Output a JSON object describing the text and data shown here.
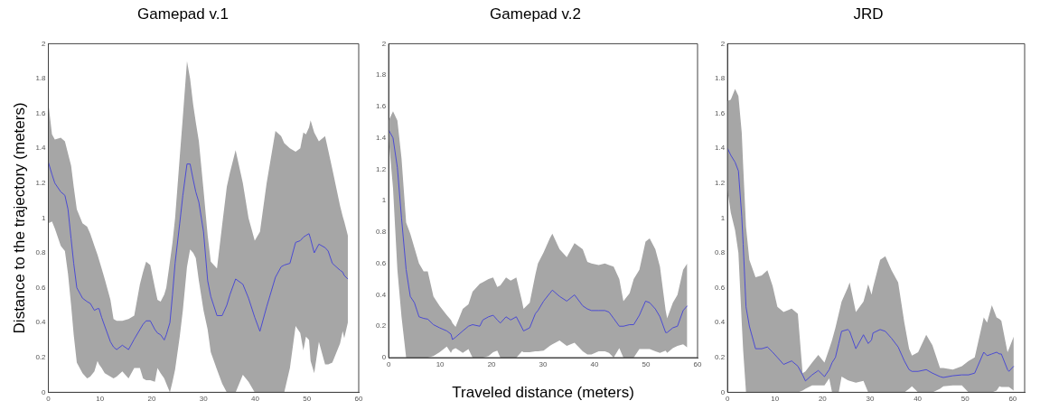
{
  "chart_data": [
    {
      "type": "line",
      "title": "Gamepad v.1",
      "ylabel": "Distance to the trajectory (meters)",
      "xlim": [
        0,
        60
      ],
      "xticks": [
        0,
        10,
        20,
        30,
        40,
        50,
        60
      ],
      "ylim": [
        0,
        2
      ],
      "yticks": [
        0,
        0.2,
        0.4,
        0.6,
        0.8,
        1,
        1.2,
        1.4,
        1.6,
        1.8,
        2
      ],
      "series": [
        {
          "color": "#4b4bd2",
          "x": [
            0,
            0.7,
            1.25,
            2.4,
            3.2,
            3.8,
            4.4,
            4.9,
            5.5,
            6.6,
            7.5,
            8.1,
            8.9,
            9.5,
            9.8,
            10.3,
            10.9,
            12,
            12.6,
            13.2,
            14.3,
            15.5,
            16.6,
            17.7,
            18.3,
            18.9,
            19.7,
            20.6,
            21.1,
            21.7,
            22.4,
            22.8,
            23.5,
            24,
            24.5,
            25.4,
            26,
            26.8,
            27.4,
            28,
            28.5,
            29.1,
            30,
            30.8,
            31.4,
            32.6,
            33.6,
            34.5,
            35.1,
            36.2,
            37.6,
            38.7,
            39.9,
            40.9,
            42.2,
            43.9,
            45,
            45.6,
            46.7,
            47.8,
            48.7,
            49.3,
            49.8,
            50.4,
            50.7,
            51.4,
            52.3,
            53.5,
            54.1,
            54.9,
            56.4,
            56.9,
            57.2,
            57.9
          ],
          "values": [
            1.32,
            1.25,
            1.2,
            1.15,
            1.13,
            1.05,
            0.88,
            0.74,
            0.6,
            0.54,
            0.52,
            0.51,
            0.47,
            0.48,
            0.48,
            0.43,
            0.38,
            0.29,
            0.26,
            0.245,
            0.27,
            0.245,
            0.305,
            0.36,
            0.39,
            0.41,
            0.41,
            0.36,
            0.34,
            0.33,
            0.3,
            0.33,
            0.4,
            0.56,
            0.74,
            0.97,
            1.13,
            1.31,
            1.31,
            1.22,
            1.15,
            1.09,
            0.92,
            0.64,
            0.55,
            0.44,
            0.44,
            0.5,
            0.56,
            0.65,
            0.62,
            0.54,
            0.43,
            0.35,
            0.49,
            0.66,
            0.72,
            0.73,
            0.74,
            0.86,
            0.87,
            0.89,
            0.9,
            0.91,
            0.88,
            0.8,
            0.85,
            0.83,
            0.81,
            0.74,
            0.7,
            0.69,
            0.67,
            0.65
          ],
          "upper": [
            1.66,
            1.48,
            1.45,
            1.46,
            1.44,
            1.37,
            1.3,
            1.18,
            1.05,
            0.97,
            0.95,
            0.91,
            0.84,
            0.79,
            0.76,
            0.71,
            0.65,
            0.53,
            0.42,
            0.41,
            0.41,
            0.42,
            0.44,
            0.62,
            0.69,
            0.75,
            0.73,
            0.6,
            0.53,
            0.52,
            0.56,
            0.6,
            0.75,
            0.86,
            1.0,
            1.35,
            1.58,
            1.9,
            1.8,
            1.65,
            1.55,
            1.44,
            1.16,
            0.9,
            0.75,
            0.71,
            0.96,
            1.18,
            1.26,
            1.39,
            1.2,
            1.0,
            0.87,
            0.92,
            1.2,
            1.5,
            1.47,
            1.43,
            1.4,
            1.38,
            1.4,
            1.49,
            1.48,
            1.52,
            1.56,
            1.49,
            1.44,
            1.47,
            1.39,
            1.28,
            1.07,
            1.01,
            0.98,
            0.9
          ],
          "lower": [
            0.97,
            0.98,
            0.94,
            0.84,
            0.81,
            0.68,
            0.5,
            0.33,
            0.17,
            0.11,
            0.08,
            0.09,
            0.12,
            0.18,
            0.16,
            0.14,
            0.11,
            0.09,
            0.08,
            0.09,
            0.12,
            0.08,
            0.14,
            0.14,
            0.08,
            0.07,
            0.07,
            0.06,
            0.14,
            0.11,
            0.08,
            0.05,
            0,
            0.06,
            0.13,
            0.32,
            0.47,
            0.72,
            0.82,
            0.8,
            0.77,
            0.64,
            0.47,
            0.36,
            0.23,
            0.13,
            0.05,
            0,
            0,
            0,
            0.1,
            0.06,
            0,
            0,
            0,
            0,
            0,
            0,
            0.14,
            0.38,
            0.34,
            0.24,
            0.32,
            0.3,
            0.18,
            0.11,
            0.29,
            0.16,
            0.16,
            0.17,
            0.28,
            0.35,
            0.31,
            0.4
          ]
        }
      ]
    },
    {
      "type": "line",
      "title": "Gamepad v.2",
      "xlabel": "Traveled distance (meters)",
      "xlim": [
        0,
        60
      ],
      "xticks": [
        0,
        10,
        20,
        30,
        40,
        50,
        60
      ],
      "ylim": [
        0,
        2
      ],
      "yticks": [
        0,
        0.2,
        0.4,
        0.6,
        0.8,
        1,
        1.2,
        1.4,
        1.6,
        1.8,
        2
      ],
      "series": [
        {
          "color": "#4b4bd2",
          "x": [
            0,
            0.85,
            1.7,
            2.5,
            3.4,
            4.2,
            5,
            5.9,
            6.8,
            7.6,
            8.7,
            9.9,
            11.3,
            12.1,
            12.4,
            13,
            14.4,
            15.5,
            16.3,
            17.7,
            18.3,
            19.4,
            20.3,
            21.1,
            21.7,
            22.8,
            23.7,
            24.8,
            25.9,
            26.2,
            27.4,
            28.5,
            29,
            30.1,
            31.3,
            31.8,
            33.2,
            34.6,
            36.1,
            37.7,
            38.6,
            39.4,
            40.8,
            42,
            42.8,
            43.7,
            44.8,
            45.6,
            46.8,
            47.6,
            48.7,
            49.9,
            50.7,
            51.8,
            52.7,
            53.8,
            54.1,
            55.2,
            56.1,
            57.2,
            58
          ],
          "values": [
            1.45,
            1.4,
            1.21,
            0.89,
            0.56,
            0.39,
            0.35,
            0.26,
            0.25,
            0.245,
            0.21,
            0.19,
            0.17,
            0.15,
            0.115,
            0.13,
            0.17,
            0.2,
            0.21,
            0.2,
            0.24,
            0.26,
            0.27,
            0.24,
            0.22,
            0.26,
            0.24,
            0.26,
            0.19,
            0.17,
            0.19,
            0.28,
            0.3,
            0.36,
            0.41,
            0.43,
            0.39,
            0.36,
            0.4,
            0.33,
            0.31,
            0.3,
            0.3,
            0.3,
            0.29,
            0.25,
            0.2,
            0.2,
            0.21,
            0.21,
            0.27,
            0.36,
            0.35,
            0.31,
            0.26,
            0.16,
            0.16,
            0.19,
            0.2,
            0.3,
            0.33
          ],
          "upper": [
            1.51,
            1.57,
            1.51,
            1.27,
            0.86,
            0.79,
            0.7,
            0.6,
            0.55,
            0.55,
            0.39,
            0.33,
            0.27,
            0.24,
            0.22,
            0.195,
            0.31,
            0.34,
            0.42,
            0.47,
            0.48,
            0.5,
            0.51,
            0.45,
            0.46,
            0.51,
            0.49,
            0.51,
            0.36,
            0.31,
            0.35,
            0.53,
            0.6,
            0.67,
            0.76,
            0.79,
            0.69,
            0.64,
            0.73,
            0.69,
            0.61,
            0.6,
            0.59,
            0.6,
            0.59,
            0.58,
            0.5,
            0.36,
            0.41,
            0.5,
            0.56,
            0.74,
            0.76,
            0.69,
            0.58,
            0.3,
            0.25,
            0.35,
            0.4,
            0.56,
            0.6
          ],
          "lower": [
            1.4,
            1.08,
            0.56,
            0.26,
            0,
            0,
            0,
            0,
            0,
            0,
            0.01,
            0.035,
            0.07,
            0.03,
            0.05,
            0.06,
            0.03,
            0.055,
            0,
            0,
            0,
            0.01,
            0.035,
            0.045,
            0,
            0,
            0,
            0,
            0.04,
            0.035,
            0.035,
            0.04,
            0.04,
            0.045,
            0.075,
            0.085,
            0.11,
            0.075,
            0.095,
            0.04,
            0.02,
            0.02,
            0.04,
            0.04,
            0.03,
            0,
            0.06,
            0,
            0,
            0,
            0.055,
            0.055,
            0.055,
            0.04,
            0.03,
            0.045,
            0.03,
            0.06,
            0.075,
            0.085,
            0.065
          ]
        }
      ]
    },
    {
      "type": "line",
      "title": "JRD",
      "xlim": [
        0,
        62.5
      ],
      "xticks": [
        0,
        10,
        20,
        30,
        40,
        50,
        60
      ],
      "ylim": [
        0,
        2
      ],
      "yticks": [
        0,
        0.2,
        0.4,
        0.6,
        0.8,
        1,
        1.2,
        1.4,
        1.6,
        1.8,
        2
      ],
      "series": [
        {
          "color": "#4b4bd2",
          "x": [
            0,
            0.7,
            1.6,
            2.3,
            3,
            3.3,
            3.9,
            4.6,
            5.9,
            7.2,
            8.4,
            9.5,
            10.5,
            11.8,
            13.5,
            14.8,
            15.8,
            16.4,
            17.8,
            19.1,
            20.4,
            21.4,
            22,
            22.7,
            23.4,
            24,
            25.3,
            25.7,
            27,
            28.6,
            29.6,
            30.3,
            30.6,
            32.1,
            33.2,
            34.5,
            35.9,
            37.2,
            38.2,
            38.8,
            40.1,
            41.8,
            43.1,
            44.7,
            45.4,
            47.4,
            49.3,
            50.7,
            52,
            53.9,
            54.6,
            55.6,
            56.6,
            57.2,
            57.6,
            58.9,
            59.2,
            60.2
          ],
          "values": [
            1.4,
            1.36,
            1.32,
            1.27,
            1.01,
            0.85,
            0.49,
            0.38,
            0.25,
            0.25,
            0.26,
            0.23,
            0.2,
            0.16,
            0.18,
            0.15,
            0.1,
            0.065,
            0.1,
            0.125,
            0.09,
            0.13,
            0.17,
            0.2,
            0.28,
            0.35,
            0.36,
            0.35,
            0.25,
            0.33,
            0.28,
            0.3,
            0.34,
            0.36,
            0.35,
            0.31,
            0.26,
            0.18,
            0.13,
            0.12,
            0.12,
            0.13,
            0.11,
            0.09,
            0.085,
            0.095,
            0.1,
            0.1,
            0.11,
            0.23,
            0.21,
            0.22,
            0.23,
            0.22,
            0.22,
            0.13,
            0.12,
            0.15
          ],
          "upper": [
            1.67,
            1.68,
            1.74,
            1.7,
            1.49,
            1.3,
            0.95,
            0.76,
            0.66,
            0.67,
            0.7,
            0.61,
            0.49,
            0.46,
            0.48,
            0.45,
            0.11,
            0.12,
            0.17,
            0.215,
            0.17,
            0.25,
            0.3,
            0.37,
            0.45,
            0.52,
            0.6,
            0.63,
            0.46,
            0.52,
            0.62,
            0.56,
            0.6,
            0.76,
            0.78,
            0.7,
            0.63,
            0.4,
            0.25,
            0.21,
            0.23,
            0.33,
            0.27,
            0.14,
            0.14,
            0.13,
            0.15,
            0.18,
            0.2,
            0.43,
            0.4,
            0.5,
            0.43,
            0.42,
            0.41,
            0.23,
            0.25,
            0.32
          ],
          "lower": [
            1.16,
            1.03,
            0.93,
            0.8,
            0.4,
            0.24,
            0,
            0,
            0,
            0,
            0,
            0,
            0,
            0,
            0,
            0,
            0.01,
            0.02,
            0.04,
            0.04,
            0.04,
            0.08,
            0,
            0,
            0,
            0.09,
            0.07,
            0.065,
            0.055,
            0.065,
            0,
            0,
            0,
            0,
            0,
            0,
            0,
            0,
            0.02,
            0.035,
            0,
            0,
            0,
            0.02,
            0.035,
            0.04,
            0.04,
            0,
            0,
            0,
            0,
            0,
            0.01,
            0.035,
            0.03,
            0.03,
            0.03,
            0.01
          ]
        }
      ]
    }
  ]
}
